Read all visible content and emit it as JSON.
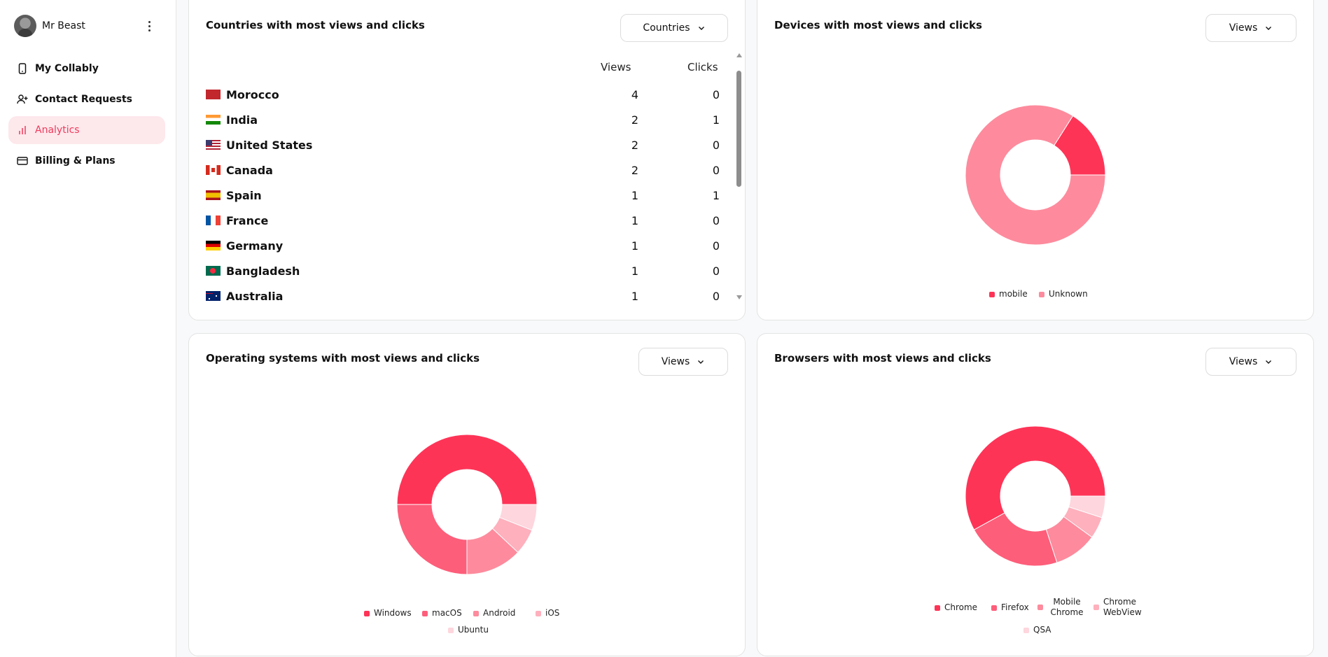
{
  "sidebar": {
    "user_name": "Mr Beast",
    "items": [
      {
        "label": "My Collably",
        "icon": "phone-icon"
      },
      {
        "label": "Contact Requests",
        "icon": "user-plus-icon"
      },
      {
        "label": "Analytics",
        "icon": "bar-chart-icon",
        "active": true
      },
      {
        "label": "Billing & Plans",
        "icon": "credit-card-icon"
      }
    ]
  },
  "colors": {
    "accent": "#ee3b5b",
    "accent_bg": "#fde8ec",
    "shades": [
      "#fe3457",
      "#fd5e7a",
      "#fd8b9d",
      "#feb0bd",
      "#fed6dd"
    ]
  },
  "countries_card": {
    "title": "Countries with most views and clicks",
    "dropdown": "Countries",
    "col_views": "Views",
    "col_clicks": "Clicks",
    "rows": [
      {
        "flag": "morocco-flag",
        "name": "Morocco",
        "views": 4,
        "clicks": 0
      },
      {
        "flag": "india-flag",
        "name": "India",
        "views": 2,
        "clicks": 1
      },
      {
        "flag": "us-flag",
        "name": "United States",
        "views": 2,
        "clicks": 0
      },
      {
        "flag": "canada-flag",
        "name": "Canada",
        "views": 2,
        "clicks": 0
      },
      {
        "flag": "spain-flag",
        "name": "Spain",
        "views": 1,
        "clicks": 1
      },
      {
        "flag": "france-flag",
        "name": "France",
        "views": 1,
        "clicks": 0
      },
      {
        "flag": "germany-flag",
        "name": "Germany",
        "views": 1,
        "clicks": 0
      },
      {
        "flag": "bangladesh-flag",
        "name": "Bangladesh",
        "views": 1,
        "clicks": 0
      },
      {
        "flag": "australia-flag",
        "name": "Australia",
        "views": 1,
        "clicks": 0
      }
    ]
  },
  "devices_card": {
    "title": "Devices with most views and clicks",
    "dropdown": "Views"
  },
  "os_card": {
    "title": "Operating systems with most views and clicks",
    "dropdown": "Views"
  },
  "browsers_card": {
    "title": "Browsers with most views and clicks",
    "dropdown": "Views"
  },
  "chart_data": [
    {
      "type": "pie",
      "variant": "donut",
      "categories": [
        "mobile",
        "Unknown"
      ],
      "values": [
        16,
        84
      ],
      "legend_position": "bottom"
    },
    {
      "type": "pie",
      "variant": "donut",
      "categories": [
        "Windows",
        "macOS",
        "Android",
        "iOS",
        "Ubuntu"
      ],
      "values": [
        50,
        25,
        13,
        6,
        6
      ],
      "legend_position": "bottom"
    },
    {
      "type": "pie",
      "variant": "donut",
      "categories": [
        "Chrome",
        "Firefox",
        "Mobile Chrome",
        "Chrome WebView",
        "QSA"
      ],
      "values": [
        58,
        22,
        10,
        5,
        5
      ],
      "legend_position": "bottom"
    }
  ]
}
